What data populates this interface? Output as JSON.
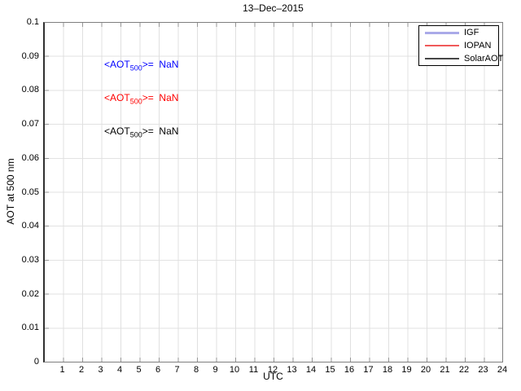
{
  "chart": {
    "title": "13–Dec–2015",
    "axes": {
      "x": {
        "label": "UTC",
        "ticks": [
          "1",
          "2",
          "3",
          "4",
          "5",
          "6",
          "7",
          "8",
          "9",
          "10",
          "11",
          "12",
          "13",
          "14",
          "15",
          "16",
          "17",
          "18",
          "19",
          "20",
          "21",
          "22",
          "23",
          "24"
        ]
      },
      "y": {
        "label": "AOT at 500 nm",
        "ticks": [
          "0",
          "0.01",
          "0.02",
          "0.03",
          "0.04",
          "0.05",
          "0.06",
          "0.07",
          "0.08",
          "0.09",
          "0.1"
        ]
      }
    },
    "colors": {
      "grid": "#e0e0e0",
      "tick": "#969696",
      "axis_box": "#7f7f7f"
    }
  },
  "annotations": [
    {
      "prefix": "<AOT",
      "sub": "500",
      "suffix": ">=  NaN",
      "color": "#0000ff"
    },
    {
      "prefix": "<AOT",
      "sub": "500",
      "suffix": ">=  NaN",
      "color": "#ff0000"
    },
    {
      "prefix": "<AOT",
      "sub": "500",
      "suffix": ">=  NaN",
      "color": "#000000"
    }
  ],
  "legend": {
    "entries": [
      {
        "label": "IGF",
        "color": "#aaaae8"
      },
      {
        "label": "IOPAN",
        "color": "#f05a5a"
      },
      {
        "label": "SolarAOT",
        "color": "#464646"
      }
    ]
  },
  "chart_data": {
    "type": "line",
    "title": "13–Dec–2015",
    "xlabel": "UTC",
    "ylabel": "AOT at 500 nm",
    "xlim": [
      0,
      24
    ],
    "ylim": [
      0,
      0.1
    ],
    "x_ticks": [
      1,
      2,
      3,
      4,
      5,
      6,
      7,
      8,
      9,
      10,
      11,
      12,
      13,
      14,
      15,
      16,
      17,
      18,
      19,
      20,
      21,
      22,
      23,
      24
    ],
    "y_ticks": [
      0,
      0.01,
      0.02,
      0.03,
      0.04,
      0.05,
      0.06,
      0.07,
      0.08,
      0.09,
      0.1
    ],
    "grid": true,
    "legend_position": "top-right",
    "series": [
      {
        "name": "IGF",
        "color": "#aaaae8",
        "x": [],
        "y": [],
        "mean_aot_500": "NaN"
      },
      {
        "name": "IOPAN",
        "color": "#f05a5a",
        "x": [],
        "y": [],
        "mean_aot_500": "NaN"
      },
      {
        "name": "SolarAOT",
        "color": "#464646",
        "x": [],
        "y": [],
        "mean_aot_500": "NaN"
      }
    ]
  }
}
